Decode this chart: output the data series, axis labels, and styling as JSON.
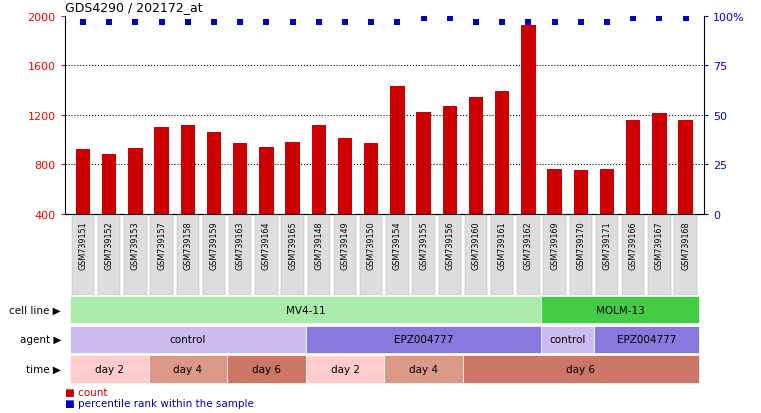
{
  "title": "GDS4290 / 202172_at",
  "samples": [
    "GSM739151",
    "GSM739152",
    "GSM739153",
    "GSM739157",
    "GSM739158",
    "GSM739159",
    "GSM739163",
    "GSM739164",
    "GSM739165",
    "GSM739148",
    "GSM739149",
    "GSM739150",
    "GSM739154",
    "GSM739155",
    "GSM739156",
    "GSM739160",
    "GSM739161",
    "GSM739162",
    "GSM739169",
    "GSM739170",
    "GSM739171",
    "GSM739166",
    "GSM739167",
    "GSM739168"
  ],
  "counts": [
    920,
    880,
    930,
    1100,
    1120,
    1060,
    970,
    940,
    980,
    1120,
    1010,
    970,
    1430,
    1220,
    1270,
    1340,
    1390,
    1920,
    760,
    750,
    760,
    1160,
    1210,
    1160
  ],
  "percentile": [
    97,
    97,
    97,
    97,
    97,
    97,
    97,
    97,
    97,
    97,
    97,
    97,
    97,
    99,
    99,
    97,
    97,
    97,
    97,
    97,
    97,
    99,
    99,
    99
  ],
  "bar_color": "#cc0000",
  "dot_color": "#0000cc",
  "ylim": [
    400,
    2000
  ],
  "yticks": [
    400,
    800,
    1200,
    1600,
    2000
  ],
  "right_yticks": [
    0,
    25,
    50,
    75,
    100
  ],
  "right_ylim": [
    0,
    100
  ],
  "dotted_lines": [
    800,
    1200,
    1600
  ],
  "cell_line_groups": [
    {
      "label": "MV4-11",
      "start": 0,
      "end": 18,
      "color": "#aaeaaa"
    },
    {
      "label": "MOLM-13",
      "start": 18,
      "end": 24,
      "color": "#44cc44"
    }
  ],
  "agent_groups": [
    {
      "label": "control",
      "start": 0,
      "end": 9,
      "color": "#ccbbee"
    },
    {
      "label": "EPZ004777",
      "start": 9,
      "end": 18,
      "color": "#8877dd"
    },
    {
      "label": "control",
      "start": 18,
      "end": 20,
      "color": "#ccbbee"
    },
    {
      "label": "EPZ004777",
      "start": 20,
      "end": 24,
      "color": "#8877dd"
    }
  ],
  "time_groups": [
    {
      "label": "day 2",
      "start": 0,
      "end": 3,
      "color": "#ffcccc"
    },
    {
      "label": "day 4",
      "start": 3,
      "end": 6,
      "color": "#dd9988"
    },
    {
      "label": "day 6",
      "start": 6,
      "end": 9,
      "color": "#cc7766"
    },
    {
      "label": "day 2",
      "start": 9,
      "end": 12,
      "color": "#ffcccc"
    },
    {
      "label": "day 4",
      "start": 12,
      "end": 15,
      "color": "#dd9988"
    },
    {
      "label": "day 6",
      "start": 15,
      "end": 24,
      "color": "#cc7766"
    }
  ],
  "row_labels": [
    "cell line",
    "agent",
    "time"
  ],
  "legend_items": [
    {
      "color": "#cc0000",
      "label": "count"
    },
    {
      "color": "#0000cc",
      "label": "percentile rank within the sample"
    }
  ],
  "background_color": "#ffffff",
  "ticklabel_bg": "#dddddd",
  "font_size": 8
}
